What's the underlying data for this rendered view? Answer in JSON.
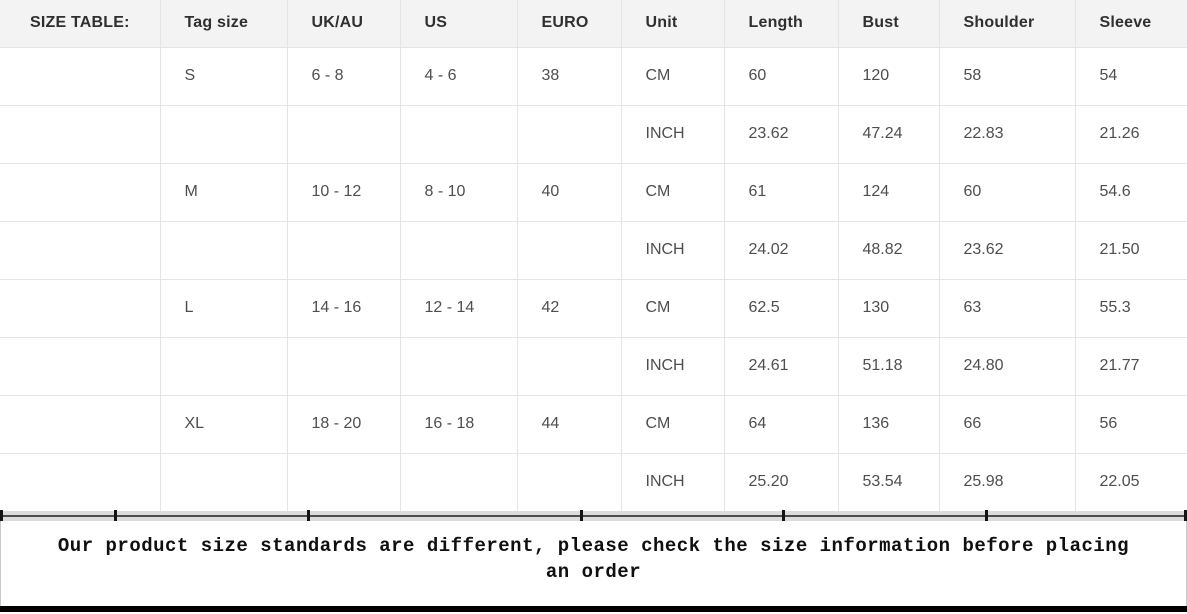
{
  "table": {
    "headers": [
      "SIZE TABLE:",
      "Tag size",
      "UK/AU",
      "US",
      "EURO",
      "Unit",
      "Length",
      "Bust",
      "Shoulder",
      "Sleeve"
    ],
    "rows": [
      [
        "",
        "S",
        "6 - 8",
        "4 - 6",
        "38",
        "CM",
        "60",
        "120",
        "58",
        "54"
      ],
      [
        "",
        "",
        "",
        "",
        "",
        "INCH",
        "23.62",
        "47.24",
        "22.83",
        "21.26"
      ],
      [
        "",
        "M",
        "10 - 12",
        "8 - 10",
        "40",
        "CM",
        "61",
        "124",
        "60",
        "54.6"
      ],
      [
        "",
        "",
        "",
        "",
        "",
        "INCH",
        "24.02",
        "48.82",
        "23.62",
        "21.50"
      ],
      [
        "",
        "L",
        "14 - 16",
        "12 - 14",
        "42",
        "CM",
        "62.5",
        "130",
        "63",
        "55.3"
      ],
      [
        "",
        "",
        "",
        "",
        "",
        "INCH",
        "24.61",
        "51.18",
        "24.80",
        "21.77"
      ],
      [
        "",
        "XL",
        "18 - 20",
        "16 - 18",
        "44",
        "CM",
        "64",
        "136",
        "66",
        "56"
      ],
      [
        "",
        "",
        "",
        "",
        "",
        "INCH",
        "25.20",
        "53.54",
        "25.98",
        "22.05"
      ]
    ]
  },
  "note": {
    "text": "Our product size standards are different, please check the size information before placing an order"
  },
  "colors": {
    "header_bg": "#f3f3f3",
    "border": "#e4e4e4",
    "header_text": "#2f2f2f",
    "cell_text": "#4e4e4e",
    "note_text": "#0f0f0f",
    "band_bg": "#dcdcdc",
    "band_line": "#4d4d4d",
    "tick": "#141414",
    "bottom_bar": "#000000"
  }
}
